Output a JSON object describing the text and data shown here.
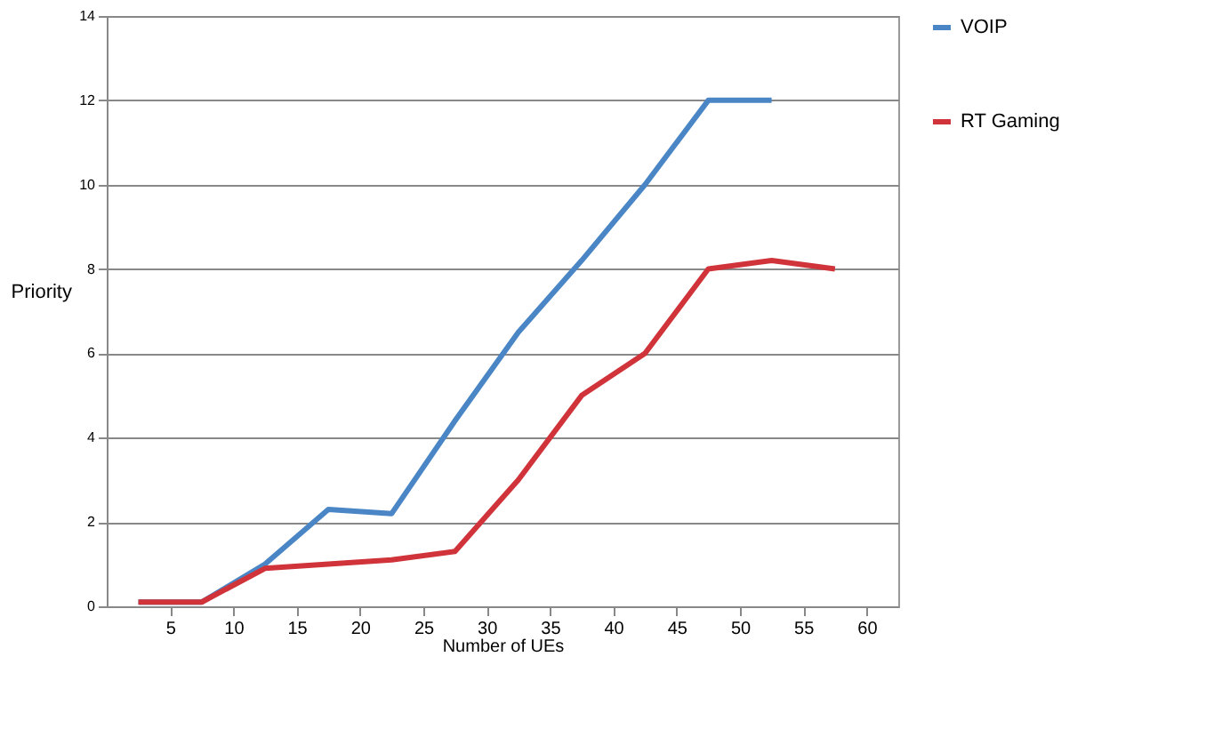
{
  "chart_data": {
    "type": "line",
    "xlabel": "Number of UEs",
    "ylabel": "Priority",
    "x": [
      2.5,
      7.5,
      12.5,
      17.5,
      22.5,
      27.5,
      32.5,
      37.5,
      42.5,
      47.5,
      52.5,
      57.5
    ],
    "series": [
      {
        "name": "VOIP",
        "color": "#4a86c5",
        "values": [
          0.1,
          0.1,
          1,
          2.3,
          2.2,
          4.4,
          6.5,
          8.2,
          10,
          12,
          12,
          null
        ]
      },
      {
        "name": "RT Gaming",
        "color": "#d0343a",
        "values": [
          0.1,
          0.1,
          0.9,
          1,
          1.1,
          1.3,
          3,
          5,
          6,
          8,
          8.2,
          8
        ]
      }
    ],
    "xlim": [
      0,
      62.5
    ],
    "xticks": [
      5,
      10,
      15,
      20,
      25,
      30,
      35,
      40,
      45,
      50,
      55,
      60
    ],
    "ylim": [
      0,
      14
    ],
    "yticks": [
      0,
      2,
      4,
      6,
      8,
      10,
      12,
      14
    ],
    "grid": "y",
    "legend": "right",
    "marker": "none",
    "line_style": "solid"
  }
}
